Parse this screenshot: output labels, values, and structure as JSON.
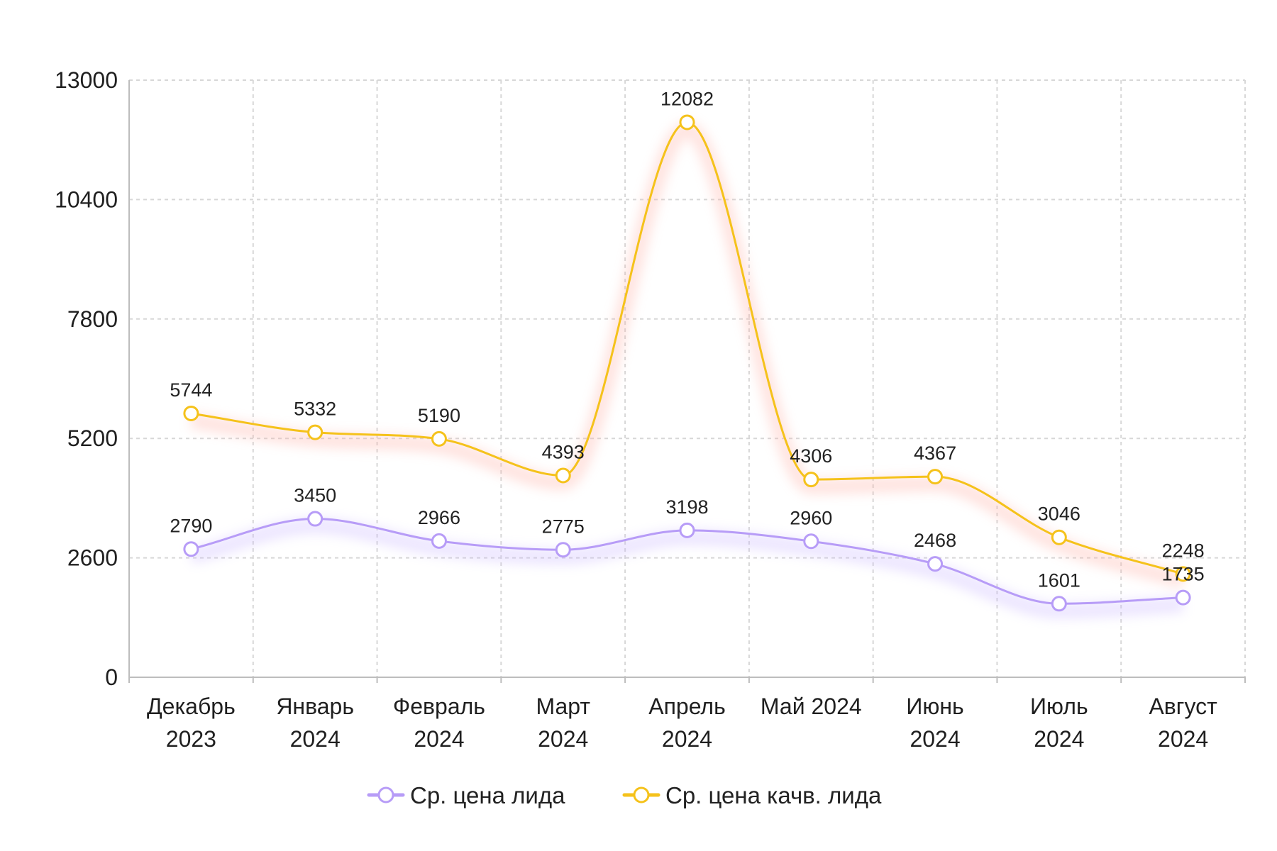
{
  "chart_data": {
    "type": "line",
    "title": "",
    "xlabel": "",
    "ylabel": "",
    "categories": [
      [
        "Декабрь",
        "2023"
      ],
      [
        "Январь",
        "2024"
      ],
      [
        "Февраль",
        "2024"
      ],
      [
        "Март",
        "2024"
      ],
      [
        "Апрель",
        "2024"
      ],
      [
        "Май 2024"
      ],
      [
        "Июнь",
        "2024"
      ],
      [
        "Июль",
        "2024"
      ],
      [
        "Август",
        "2024"
      ]
    ],
    "ylim": [
      0,
      13000
    ],
    "yticks": [
      0,
      2600,
      5200,
      7800,
      10400,
      13000
    ],
    "grid": true,
    "legend_position": "bottom",
    "series": [
      {
        "name": "Ср. цена лида",
        "color": "#B79CF7",
        "values": [
          2790,
          3450,
          2966,
          2775,
          3198,
          2960,
          2468,
          1601,
          1735
        ]
      },
      {
        "name": "Ср. цена качв. лида",
        "color": "#F5C21B",
        "values": [
          5744,
          5332,
          5190,
          4393,
          12082,
          4306,
          4367,
          3046,
          2248
        ]
      }
    ]
  }
}
